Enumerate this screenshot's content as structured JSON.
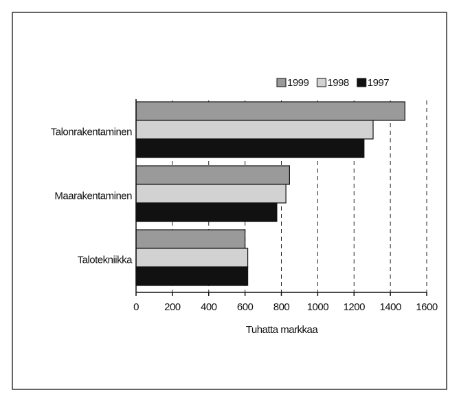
{
  "chart_data": {
    "type": "bar",
    "orientation": "horizontal",
    "categories": [
      "Talonrakentaminen",
      "Maarakentaminen",
      "Talotekniikka"
    ],
    "series": [
      {
        "name": "1999",
        "color": "#9a9a9a",
        "values": [
          1480,
          845,
          600
        ]
      },
      {
        "name": "1998",
        "color": "#d2d2d2",
        "values": [
          1305,
          825,
          615
        ]
      },
      {
        "name": "1997",
        "color": "#111111",
        "values": [
          1255,
          775,
          615
        ]
      }
    ],
    "xlabel": "Tuhatta markkaa",
    "xlim": [
      0,
      1600
    ],
    "xticks": [
      0,
      200,
      400,
      600,
      800,
      1000,
      1200,
      1400,
      1600
    ],
    "grid": true,
    "legend": "top-right"
  }
}
